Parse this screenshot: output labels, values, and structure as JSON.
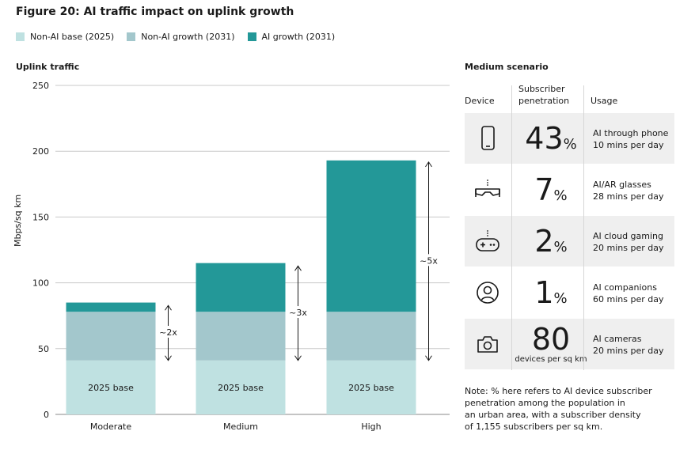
{
  "figure_title": "Figure 20: AI traffic impact on uplink growth",
  "legend": [
    {
      "label": "Non-AI base (2025)",
      "color": "#bfe1e1"
    },
    {
      "label": "Non-AI growth (2031)",
      "color": "#a3c7cc"
    },
    {
      "label": "AI growth (2031)",
      "color": "#239898"
    }
  ],
  "chart_data": {
    "type": "bar",
    "stacked": true,
    "title": "Uplink traffic",
    "ylabel": "Mbps/sq km",
    "xlabel": "",
    "ylim": [
      0,
      250
    ],
    "yticks": [
      0,
      50,
      100,
      150,
      200,
      250
    ],
    "grid": true,
    "categories": [
      "Moderate",
      "Medium",
      "High"
    ],
    "series": [
      {
        "name": "Non-AI base (2025)",
        "color": "#bfe1e1",
        "values": [
          41,
          41,
          41
        ]
      },
      {
        "name": "Non-AI growth (2031)",
        "color": "#a3c7cc",
        "values": [
          37,
          37,
          37
        ]
      },
      {
        "name": "AI growth (2031)",
        "color": "#239898",
        "values": [
          7,
          37,
          115
        ]
      }
    ],
    "bar_labels": [
      "2025 base",
      "2025 base",
      "2025 base"
    ],
    "annotations": [
      "~2x",
      "~3x",
      "~5x"
    ]
  },
  "scenario": {
    "title": "Medium scenario",
    "headers": {
      "device": "Device",
      "penetration_line1": "Subscriber",
      "penetration_line2": "penetration",
      "usage": "Usage"
    },
    "rows": [
      {
        "icon": "phone-icon",
        "value": "43",
        "unit": "%",
        "sub": "",
        "usage": "AI through phone",
        "time": "10 mins per day"
      },
      {
        "icon": "ar-glasses-icon",
        "value": "7",
        "unit": "%",
        "sub": "",
        "usage": "AI/AR glasses",
        "time": "28 mins per day"
      },
      {
        "icon": "game-controller-icon",
        "value": "2",
        "unit": "%",
        "sub": "",
        "usage": "AI cloud gaming",
        "time": "20 mins per day"
      },
      {
        "icon": "user-companion-icon",
        "value": "1",
        "unit": "%",
        "sub": "",
        "usage": "AI companions",
        "time": "60 mins per day"
      },
      {
        "icon": "camera-icon",
        "value": "80",
        "unit": "",
        "sub": "devices per sq km",
        "usage": "AI cameras",
        "time": "20 mins per day"
      }
    ]
  },
  "note": {
    "line1": "Note: % here refers to AI device subscriber",
    "line2": "penetration among the population in",
    "line3": "an urban area, with a subscriber density",
    "line4": "of 1,155 subscribers per sq km."
  }
}
